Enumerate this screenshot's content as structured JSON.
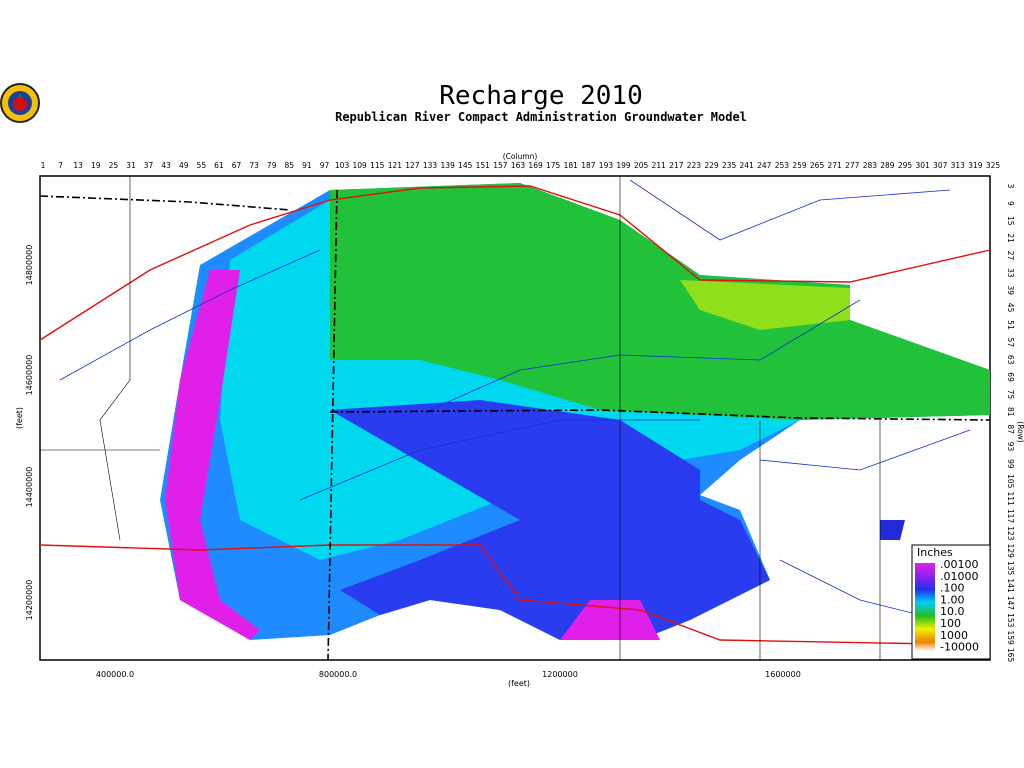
{
  "header": {
    "title": "Recharge 2010",
    "subtitle": "Republican River Compact Administration Groundwater Model"
  },
  "map": {
    "column_axis": {
      "label": "(Column)",
      "ticks": [
        1,
        7,
        13,
        19,
        25,
        31,
        37,
        43,
        49,
        55,
        61,
        67,
        73,
        79,
        85,
        91,
        97,
        103,
        109,
        115,
        121,
        127,
        133,
        139,
        145,
        151,
        157,
        163,
        169,
        175,
        181,
        187,
        193,
        199,
        205,
        211,
        217,
        223,
        229,
        235,
        241,
        247,
        253,
        259,
        265,
        271,
        277,
        283,
        289,
        295,
        301,
        307,
        313,
        319,
        325
      ]
    },
    "row_axis": {
      "label": "(Row)",
      "ticks": [
        3,
        9,
        15,
        21,
        27,
        33,
        39,
        45,
        51,
        57,
        63,
        69,
        75,
        81,
        87,
        93,
        99,
        105,
        111,
        117,
        123,
        129,
        135,
        141,
        147,
        153,
        159,
        165
      ]
    },
    "y_axis": {
      "label": "(feet)",
      "ticks": [
        "14800000",
        "14600000",
        "14400000",
        "14200000"
      ]
    },
    "x_axis": {
      "label": "(feet)",
      "ticks": [
        "400000.0",
        "800000.0",
        "1200000",
        "1600000"
      ]
    },
    "legend": {
      "title": "Inches",
      "labels": [
        ".00100",
        ".01000",
        ".100",
        "1.00",
        "10.0",
        "100",
        "1000",
        "-10000"
      ]
    }
  }
}
